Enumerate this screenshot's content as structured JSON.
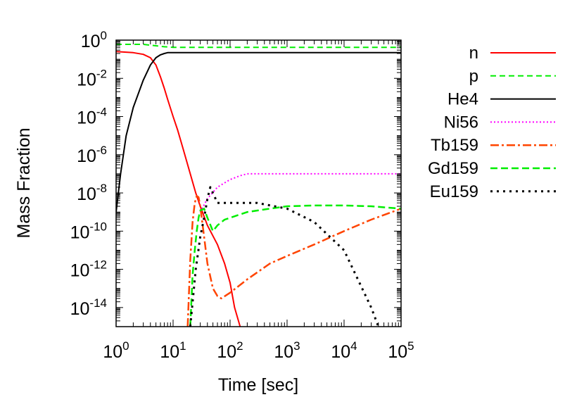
{
  "chart_data": {
    "type": "line",
    "xlabel": "Time [sec]",
    "ylabel": "Mass Fraction",
    "xscale": "log",
    "yscale": "log",
    "xlim": [
      1,
      100000
    ],
    "ylim": [
      1e-15,
      1
    ],
    "x_ticks": [
      {
        "base": "10",
        "exp": "0",
        "value": 1
      },
      {
        "base": "10",
        "exp": "1",
        "value": 10
      },
      {
        "base": "10",
        "exp": "2",
        "value": 100
      },
      {
        "base": "10",
        "exp": "3",
        "value": 1000
      },
      {
        "base": "10",
        "exp": "4",
        "value": 10000
      },
      {
        "base": "10",
        "exp": "5",
        "value": 100000
      }
    ],
    "y_ticks": [
      {
        "base": "10",
        "exp": "0",
        "value": 1
      },
      {
        "base": "10",
        "exp": "-2",
        "value": 0.01
      },
      {
        "base": "10",
        "exp": "-4",
        "value": 0.0001
      },
      {
        "base": "10",
        "exp": "-6",
        "value": 1e-06
      },
      {
        "base": "10",
        "exp": "-8",
        "value": 1e-08
      },
      {
        "base": "10",
        "exp": "-10",
        "value": 1e-10
      },
      {
        "base": "10",
        "exp": "-12",
        "value": 1e-12
      },
      {
        "base": "10",
        "exp": "-14",
        "value": 1e-14
      }
    ],
    "grid": false,
    "legend_position": "outside-right",
    "series": [
      {
        "name": "n",
        "color": "#ff0000",
        "dash": "solid",
        "width": 2,
        "points": [
          [
            1,
            0.25
          ],
          [
            2,
            0.22
          ],
          [
            3,
            0.18
          ],
          [
            4,
            0.12
          ],
          [
            5,
            0.05
          ],
          [
            6,
            0.012
          ],
          [
            7,
            0.003
          ],
          [
            8,
            0.0008
          ],
          [
            10,
            0.0001
          ],
          [
            12,
            2e-05
          ],
          [
            15,
            2e-06
          ],
          [
            20,
            1e-07
          ],
          [
            25,
            1e-08
          ],
          [
            30,
            2e-09
          ],
          [
            40,
            2e-10
          ],
          [
            60,
            2e-11
          ],
          [
            80,
            2e-12
          ],
          [
            100,
            2e-13
          ],
          [
            120,
            1e-14
          ],
          [
            150,
            1e-15
          ],
          [
            165,
            3e-16
          ]
        ]
      },
      {
        "name": "p",
        "color": "#00ee00",
        "dash": "8,5",
        "width": 2,
        "points": [
          [
            1,
            0.6
          ],
          [
            3,
            0.6
          ],
          [
            7,
            0.45
          ],
          [
            10,
            0.42
          ],
          [
            100000,
            0.42
          ]
        ]
      },
      {
        "name": "He4",
        "color": "#000000",
        "dash": "solid",
        "width": 2,
        "points": [
          [
            1,
            1e-09
          ],
          [
            1.2,
            1e-07
          ],
          [
            1.5,
            1e-05
          ],
          [
            2,
            0.0003
          ],
          [
            3,
            0.008
          ],
          [
            4,
            0.05
          ],
          [
            5,
            0.12
          ],
          [
            6,
            0.17
          ],
          [
            7,
            0.2
          ],
          [
            8,
            0.22
          ],
          [
            100000,
            0.22
          ]
        ]
      },
      {
        "name": "Ni56",
        "color": "#ff00ff",
        "dash": "2,3",
        "width": 2,
        "points": [
          [
            30,
            1e-09
          ],
          [
            40,
            5e-09
          ],
          [
            60,
            2e-08
          ],
          [
            100,
            5e-08
          ],
          [
            150,
            8e-08
          ],
          [
            200,
            1e-07
          ],
          [
            100000,
            1e-07
          ]
        ]
      },
      {
        "name": "Tb159",
        "color": "#ff4400",
        "dash": "12,4,3,4",
        "width": 2.5,
        "points": [
          [
            18,
            1e-15
          ],
          [
            20,
            3e-12
          ],
          [
            22,
            3e-10
          ],
          [
            24,
            3e-09
          ],
          [
            26,
            7e-09
          ],
          [
            28,
            6e-09
          ],
          [
            30,
            2e-09
          ],
          [
            35,
            5e-11
          ],
          [
            40,
            2e-12
          ],
          [
            50,
            1e-13
          ],
          [
            60,
            4e-14
          ],
          [
            70,
            3e-14
          ],
          [
            100,
            6e-14
          ],
          [
            200,
            3e-13
          ],
          [
            500,
            2e-12
          ],
          [
            1000,
            5e-12
          ],
          [
            3000,
            2e-11
          ],
          [
            10000,
            1e-10
          ],
          [
            30000,
            4e-10
          ],
          [
            100000,
            1.5e-09
          ]
        ]
      },
      {
        "name": "Gd159",
        "color": "#00ee00",
        "dash": "10,5",
        "width": 2.5,
        "points": [
          [
            20,
            1e-15
          ],
          [
            22,
            5e-13
          ],
          [
            24,
            1e-11
          ],
          [
            26,
            1e-10
          ],
          [
            28,
            5e-10
          ],
          [
            30,
            1.2e-09
          ],
          [
            35,
            1.5e-09
          ],
          [
            40,
            5e-10
          ],
          [
            50,
            1e-10
          ],
          [
            60,
            2e-10
          ],
          [
            80,
            4e-10
          ],
          [
            100,
            5e-10
          ],
          [
            200,
            1e-09
          ],
          [
            500,
            1.5e-09
          ],
          [
            1000,
            2e-09
          ],
          [
            3000,
            2.2e-09
          ],
          [
            10000,
            2.2e-09
          ],
          [
            30000,
            2e-09
          ],
          [
            100000,
            1.5e-09
          ]
        ]
      },
      {
        "name": "Eu159",
        "color": "#000000",
        "dash": "3,6",
        "width": 3,
        "points": [
          [
            20,
            1e-15
          ],
          [
            25,
            1e-12
          ],
          [
            30,
            5e-11
          ],
          [
            35,
            5e-10
          ],
          [
            40,
            5e-09
          ],
          [
            45,
            2e-08
          ],
          [
            50,
            1e-08
          ],
          [
            60,
            3e-09
          ],
          [
            100,
            3e-09
          ],
          [
            300,
            3e-09
          ],
          [
            1000,
            1.5e-09
          ],
          [
            3000,
            3e-10
          ],
          [
            10000,
            1e-11
          ],
          [
            30000,
            1e-14
          ],
          [
            40000,
            1e-15
          ]
        ]
      }
    ]
  }
}
